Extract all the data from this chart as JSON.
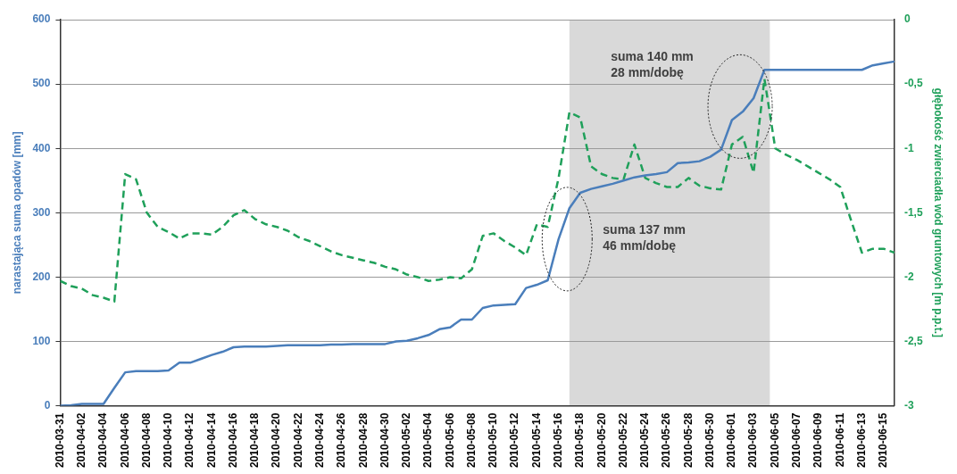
{
  "chart_data": {
    "type": "line",
    "ylabel": "narastająca suma opadów [mm]",
    "y2label": "głębokość zwierciadła wód gruntowych [m p.p.t.]",
    "x": [
      "2010-03-31",
      "2010-04-01",
      "2010-04-02",
      "2010-04-03",
      "2010-04-04",
      "2010-04-05",
      "2010-04-06",
      "2010-04-07",
      "2010-04-08",
      "2010-04-09",
      "2010-04-10",
      "2010-04-11",
      "2010-04-12",
      "2010-04-13",
      "2010-04-14",
      "2010-04-15",
      "2010-04-16",
      "2010-04-17",
      "2010-04-18",
      "2010-04-19",
      "2010-04-20",
      "2010-04-21",
      "2010-04-22",
      "2010-04-23",
      "2010-04-24",
      "2010-04-25",
      "2010-04-26",
      "2010-04-27",
      "2010-04-28",
      "2010-04-29",
      "2010-04-30",
      "2010-05-01",
      "2010-05-02",
      "2010-05-03",
      "2010-05-04",
      "2010-05-05",
      "2010-05-06",
      "2010-05-07",
      "2010-05-08",
      "2010-05-09",
      "2010-05-10",
      "2010-05-11",
      "2010-05-12",
      "2010-05-13",
      "2010-05-14",
      "2010-05-15",
      "2010-05-16",
      "2010-05-17",
      "2010-05-18",
      "2010-05-19",
      "2010-05-20",
      "2010-05-21",
      "2010-05-22",
      "2010-05-23",
      "2010-05-24",
      "2010-05-25",
      "2010-05-26",
      "2010-05-27",
      "2010-05-28",
      "2010-05-29",
      "2010-05-30",
      "2010-05-31",
      "2010-06-01",
      "2010-06-02",
      "2010-06-03",
      "2010-06-04",
      "2010-06-05",
      "2010-06-06",
      "2010-06-07",
      "2010-06-08",
      "2010-06-09",
      "2010-06-10",
      "2010-06-11",
      "2010-06-12",
      "2010-06-13",
      "2010-06-14",
      "2010-06-15",
      "2010-06-16"
    ],
    "series": [
      {
        "color": "#4a7ebb",
        "line_style": "solid",
        "values": [
          0,
          1,
          3,
          3,
          3,
          28,
          52,
          54,
          54,
          54,
          55,
          67,
          67,
          73,
          79,
          84,
          91,
          92,
          92,
          92,
          93,
          94,
          94,
          94,
          94,
          95,
          95,
          96,
          96,
          96,
          96,
          100,
          101,
          105,
          110,
          119,
          122,
          134,
          134,
          152,
          156,
          157,
          158,
          183,
          188,
          195,
          259,
          307,
          331,
          337,
          341,
          345,
          350,
          355,
          358,
          360,
          363,
          377,
          378,
          380,
          387,
          398,
          444,
          457,
          478,
          522,
          522,
          522,
          522,
          522,
          522,
          522,
          522,
          522,
          522,
          529,
          532,
          535
        ]
      },
      {
        "color": "#1fa05a",
        "line_style": "dashed",
        "axis": "y2",
        "values": [
          -2.03,
          -2.07,
          -2.09,
          -2.14,
          -2.16,
          -2.19,
          -1.2,
          -1.24,
          -1.5,
          -1.61,
          -1.65,
          -1.7,
          -1.66,
          -1.66,
          -1.67,
          -1.61,
          -1.52,
          -1.48,
          -1.55,
          -1.59,
          -1.61,
          -1.64,
          -1.69,
          -1.72,
          -1.76,
          -1.8,
          -1.83,
          -1.85,
          -1.87,
          -1.89,
          -1.92,
          -1.94,
          -1.98,
          -2.0,
          -2.03,
          -2.02,
          -2.0,
          -2.01,
          -1.94,
          -1.68,
          -1.66,
          -1.72,
          -1.77,
          -1.83,
          -1.59,
          -1.61,
          -1.23,
          -0.72,
          -0.76,
          -1.14,
          -1.2,
          -1.23,
          -1.24,
          -0.97,
          -1.23,
          -1.27,
          -1.3,
          -1.3,
          -1.23,
          -1.29,
          -1.31,
          -1.32,
          -0.97,
          -0.91,
          -1.19,
          -0.46,
          -1.0,
          -1.05,
          -1.09,
          -1.14,
          -1.19,
          -1.24,
          -1.3,
          -1.56,
          -1.81,
          -1.78,
          -1.78,
          -1.81
        ]
      }
    ],
    "xlim": [
      "2010-03-31",
      "2010-06-16"
    ],
    "xticks": [
      "2010-03-31",
      "2010-04-02",
      "2010-04-04",
      "2010-04-06",
      "2010-04-08",
      "2010-04-10",
      "2010-04-12",
      "2010-04-14",
      "2010-04-16",
      "2010-04-18",
      "2010-04-20",
      "2010-04-22",
      "2010-04-24",
      "2010-04-26",
      "2010-04-28",
      "2010-04-30",
      "2010-05-02",
      "2010-05-04",
      "2010-05-06",
      "2010-05-08",
      "2010-05-10",
      "2010-05-12",
      "2010-05-14",
      "2010-05-16",
      "2010-05-18",
      "2010-05-20",
      "2010-05-22",
      "2010-05-24",
      "2010-05-26",
      "2010-05-28",
      "2010-05-30",
      "2010-06-01",
      "2010-06-03",
      "2010-06-05",
      "2010-06-07",
      "2010-06-09",
      "2010-06-11",
      "2010-06-13",
      "2010-06-15"
    ],
    "ylim": [
      0,
      600
    ],
    "yticks": [
      0,
      100,
      200,
      300,
      400,
      500,
      600
    ],
    "y2lim": [
      -3,
      0
    ],
    "y2ticks": [
      {
        "value": -3,
        "label": "-3"
      },
      {
        "value": -2.5,
        "label": "-2,5"
      },
      {
        "value": -2,
        "label": "-2"
      },
      {
        "value": -1.5,
        "label": "-1,5"
      },
      {
        "value": -1,
        "label": "-1"
      },
      {
        "value": -0.5,
        "label": "-0,5"
      },
      {
        "value": 0,
        "label": "0"
      }
    ],
    "bands": [
      {
        "axis": "x",
        "from": "2010-05-17",
        "to": "2010-06-04T12:00",
        "color": "#d9d9d9"
      }
    ],
    "annotations": [
      {
        "text": "suma 137 mm\n46 mm/dobę",
        "x": "2010-05-16T19:00",
        "y": 259
      },
      "suma 140 mm\n28 mm/dobę"
    ],
    "grid": "y",
    "legend": false,
    "marker": "none"
  }
}
